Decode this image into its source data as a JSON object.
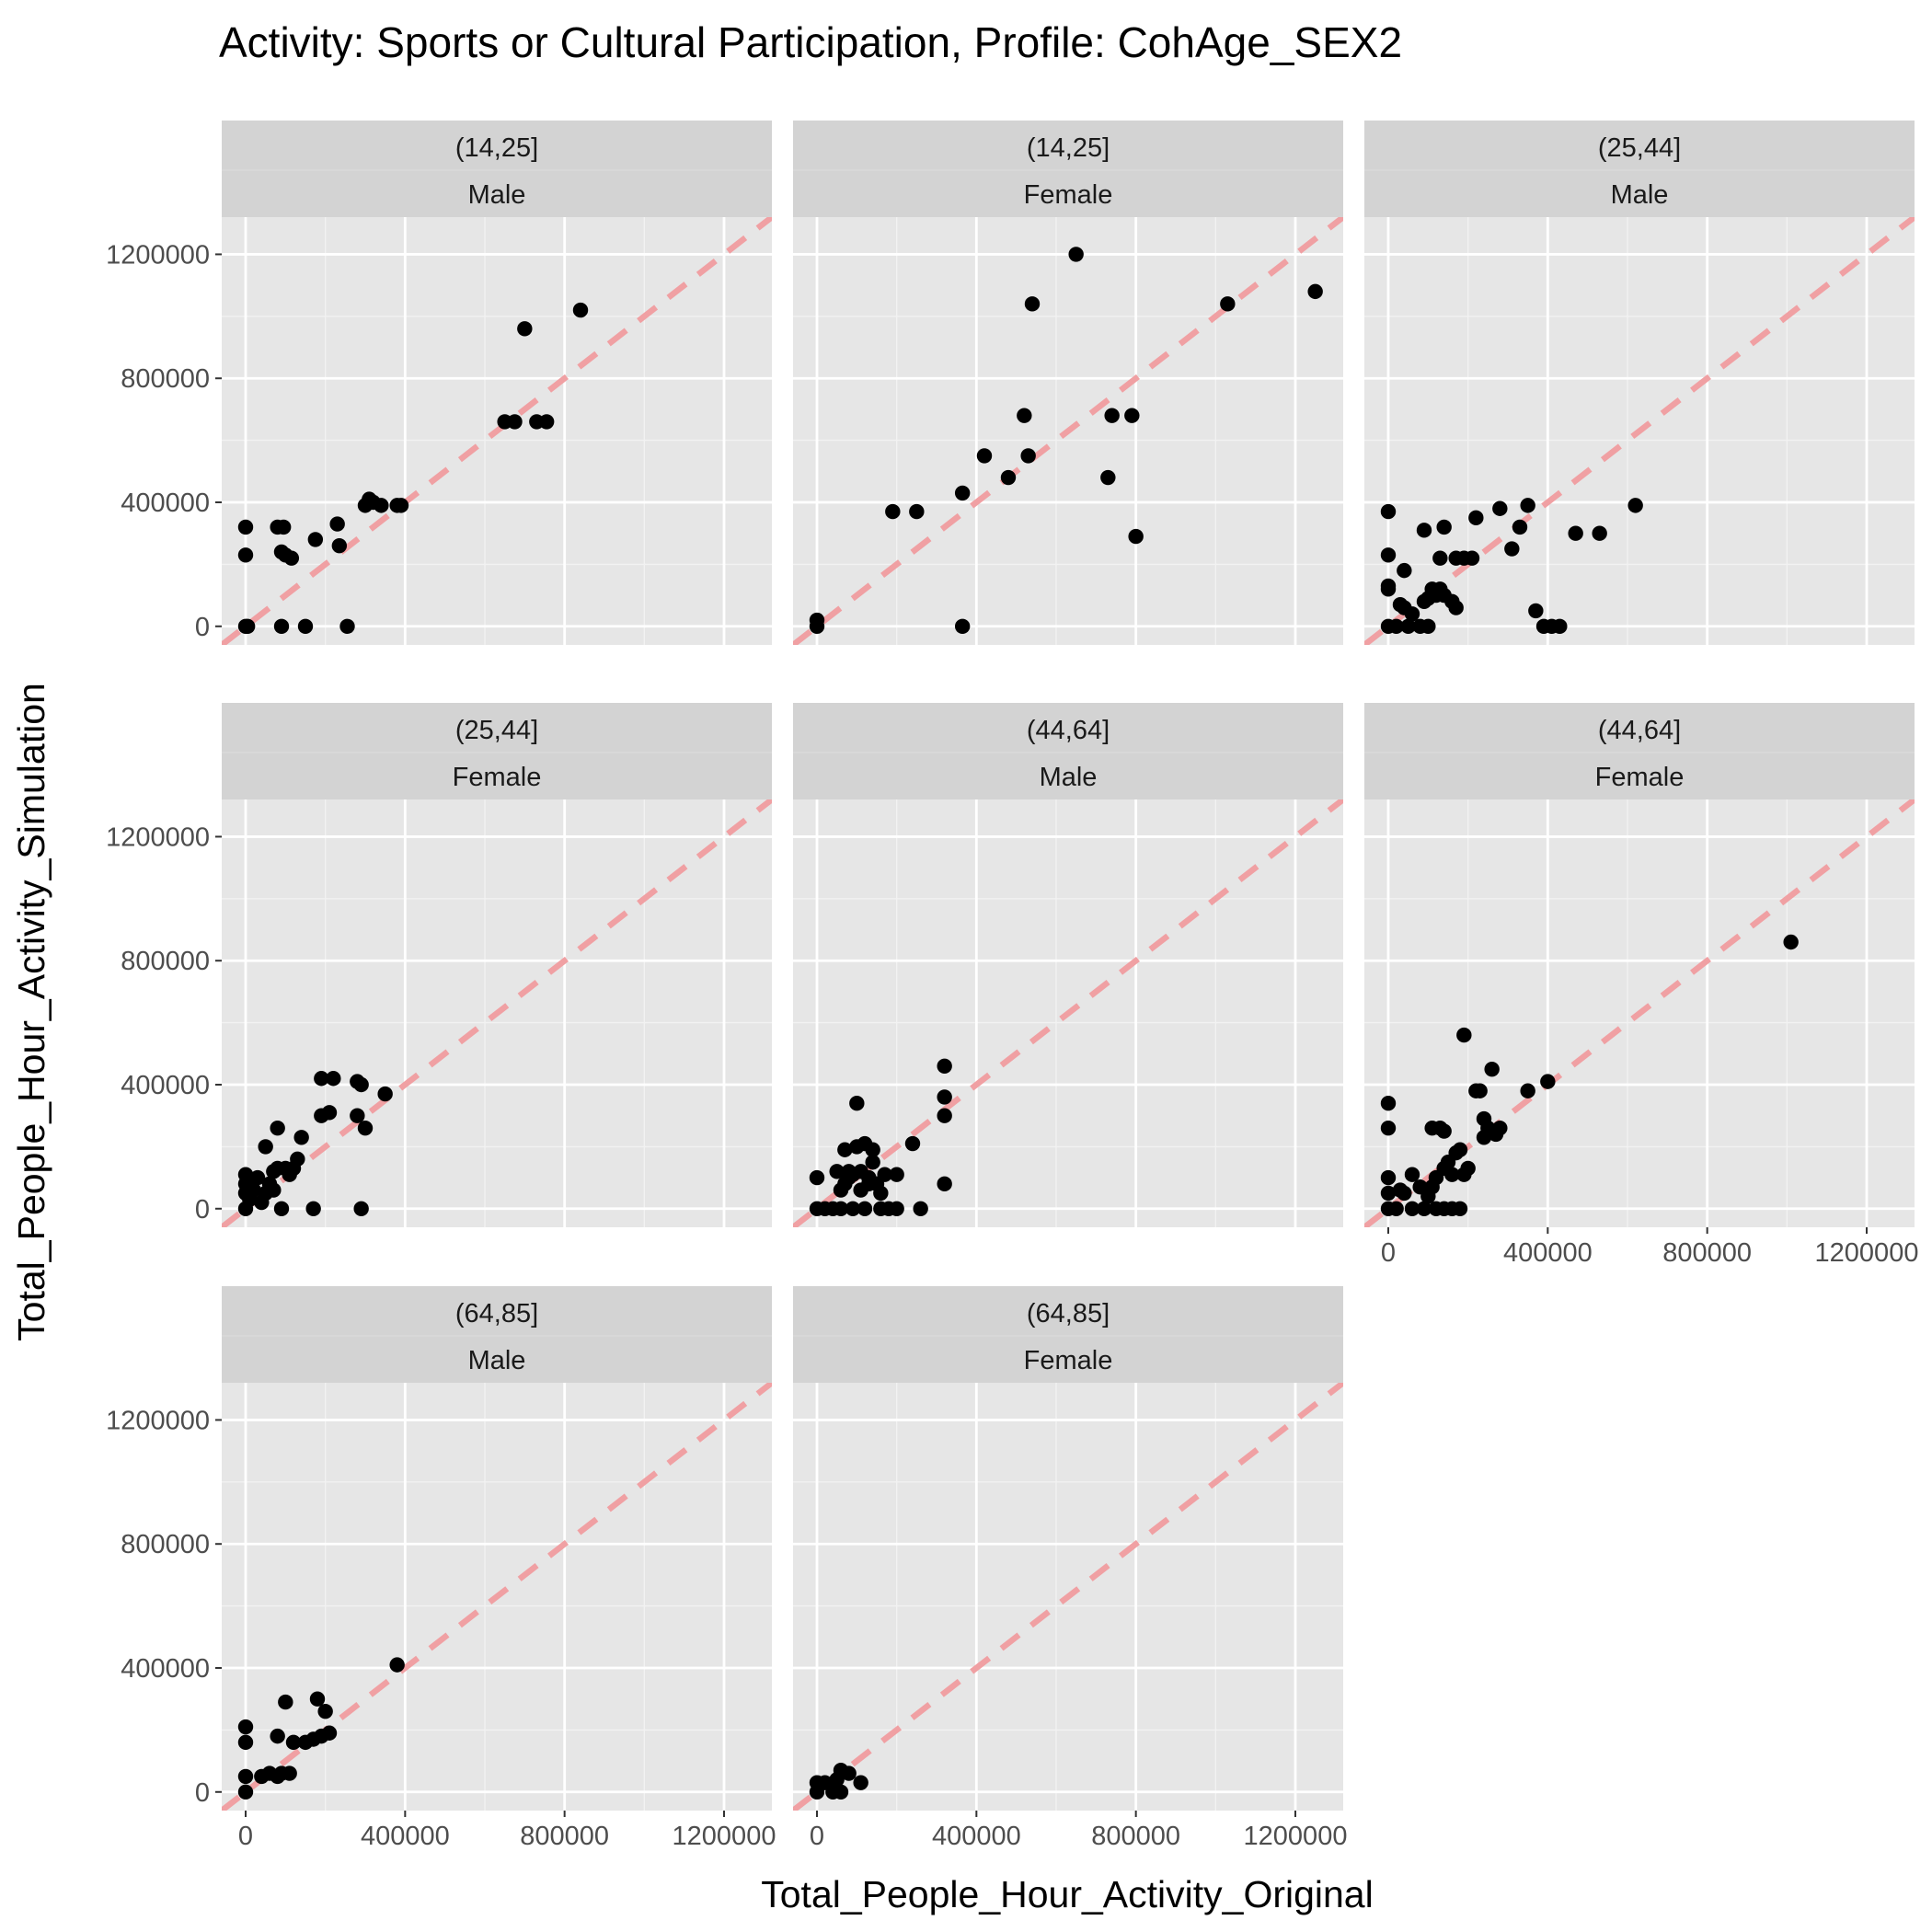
{
  "chart_data": {
    "type": "scatter",
    "title": "Activity: Sports or Cultural Participation, Profile: CohAge_SEX2",
    "xlabel": "Total_People_Hour_Activity_Original",
    "ylabel": "Total_People_Hour_Activity_Simulation",
    "xlim": [
      -60000,
      1320000
    ],
    "ylim": [
      -60000,
      1320000
    ],
    "x_ticks": [
      0,
      400000,
      800000,
      1200000
    ],
    "y_ticks": [
      0,
      400000,
      800000,
      1200000
    ],
    "x_tick_labels": [
      "0",
      "400000",
      "800000",
      "1200000"
    ],
    "y_tick_labels": [
      "0",
      "400000",
      "800000",
      "1200000"
    ],
    "reference_line": {
      "slope": 1,
      "intercept": 0,
      "style": "dashed",
      "color": "#f0a0a3"
    },
    "point_color": "#000000",
    "panel_background": "#e6e6e6",
    "strip_background": "#d3d3d3",
    "panels": [
      {
        "strip1": "(14,25]",
        "strip2": "Male",
        "points": [
          [
            0,
            320000
          ],
          [
            0,
            230000
          ],
          [
            0,
            0
          ],
          [
            5000,
            0
          ],
          [
            80000,
            320000
          ],
          [
            95000,
            320000
          ],
          [
            90000,
            240000
          ],
          [
            100000,
            230000
          ],
          [
            115000,
            220000
          ],
          [
            90000,
            0
          ],
          [
            150000,
            0
          ],
          [
            175000,
            280000
          ],
          [
            230000,
            330000
          ],
          [
            235000,
            260000
          ],
          [
            255000,
            0
          ],
          [
            300000,
            390000
          ],
          [
            310000,
            410000
          ],
          [
            320000,
            400000
          ],
          [
            340000,
            390000
          ],
          [
            380000,
            390000
          ],
          [
            390000,
            390000
          ],
          [
            650000,
            660000
          ],
          [
            675000,
            660000
          ],
          [
            730000,
            660000
          ],
          [
            755000,
            660000
          ],
          [
            700000,
            960000
          ],
          [
            840000,
            1020000
          ]
        ]
      },
      {
        "strip1": "(14,25]",
        "strip2": "Female",
        "points": [
          [
            0,
            20000
          ],
          [
            0,
            0
          ],
          [
            190000,
            370000
          ],
          [
            250000,
            370000
          ],
          [
            365000,
            430000
          ],
          [
            365000,
            0
          ],
          [
            420000,
            550000
          ],
          [
            480000,
            480000
          ],
          [
            520000,
            680000
          ],
          [
            530000,
            550000
          ],
          [
            540000,
            1040000
          ],
          [
            650000,
            1200000
          ],
          [
            730000,
            480000
          ],
          [
            740000,
            680000
          ],
          [
            790000,
            680000
          ],
          [
            800000,
            290000
          ],
          [
            1030000,
            1040000
          ],
          [
            1250000,
            1080000
          ]
        ]
      },
      {
        "strip1": "(25,44]",
        "strip2": "Male",
        "points": [
          [
            0,
            370000
          ],
          [
            0,
            230000
          ],
          [
            0,
            130000
          ],
          [
            0,
            120000
          ],
          [
            0,
            0
          ],
          [
            20000,
            0
          ],
          [
            30000,
            70000
          ],
          [
            40000,
            60000
          ],
          [
            40000,
            180000
          ],
          [
            50000,
            0
          ],
          [
            60000,
            40000
          ],
          [
            80000,
            0
          ],
          [
            90000,
            80000
          ],
          [
            90000,
            310000
          ],
          [
            100000,
            0
          ],
          [
            100000,
            90000
          ],
          [
            110000,
            120000
          ],
          [
            120000,
            100000
          ],
          [
            130000,
            120000
          ],
          [
            130000,
            220000
          ],
          [
            140000,
            100000
          ],
          [
            140000,
            320000
          ],
          [
            160000,
            80000
          ],
          [
            170000,
            60000
          ],
          [
            170000,
            220000
          ],
          [
            190000,
            220000
          ],
          [
            210000,
            220000
          ],
          [
            220000,
            350000
          ],
          [
            280000,
            380000
          ],
          [
            310000,
            250000
          ],
          [
            330000,
            320000
          ],
          [
            350000,
            390000
          ],
          [
            370000,
            50000
          ],
          [
            390000,
            0
          ],
          [
            410000,
            0
          ],
          [
            430000,
            0
          ],
          [
            470000,
            300000
          ],
          [
            530000,
            300000
          ],
          [
            620000,
            390000
          ]
        ]
      },
      {
        "strip1": "(25,44]",
        "strip2": "Female",
        "points": [
          [
            0,
            0
          ],
          [
            0,
            50000
          ],
          [
            0,
            80000
          ],
          [
            0,
            110000
          ],
          [
            10000,
            30000
          ],
          [
            20000,
            60000
          ],
          [
            30000,
            100000
          ],
          [
            40000,
            20000
          ],
          [
            50000,
            50000
          ],
          [
            50000,
            200000
          ],
          [
            60000,
            80000
          ],
          [
            70000,
            120000
          ],
          [
            70000,
            60000
          ],
          [
            80000,
            260000
          ],
          [
            80000,
            130000
          ],
          [
            90000,
            0
          ],
          [
            100000,
            130000
          ],
          [
            110000,
            110000
          ],
          [
            120000,
            130000
          ],
          [
            130000,
            160000
          ],
          [
            140000,
            230000
          ],
          [
            170000,
            0
          ],
          [
            190000,
            300000
          ],
          [
            190000,
            420000
          ],
          [
            210000,
            310000
          ],
          [
            220000,
            420000
          ],
          [
            280000,
            300000
          ],
          [
            280000,
            410000
          ],
          [
            290000,
            400000
          ],
          [
            290000,
            0
          ],
          [
            300000,
            260000
          ],
          [
            350000,
            370000
          ]
        ]
      },
      {
        "strip1": "(44,64]",
        "strip2": "Male",
        "points": [
          [
            0,
            100000
          ],
          [
            0,
            0
          ],
          [
            20000,
            0
          ],
          [
            40000,
            0
          ],
          [
            50000,
            120000
          ],
          [
            60000,
            0
          ],
          [
            60000,
            60000
          ],
          [
            70000,
            80000
          ],
          [
            70000,
            190000
          ],
          [
            80000,
            100000
          ],
          [
            80000,
            120000
          ],
          [
            90000,
            0
          ],
          [
            90000,
            110000
          ],
          [
            100000,
            340000
          ],
          [
            100000,
            200000
          ],
          [
            110000,
            60000
          ],
          [
            110000,
            120000
          ],
          [
            120000,
            0
          ],
          [
            120000,
            210000
          ],
          [
            130000,
            80000
          ],
          [
            130000,
            100000
          ],
          [
            140000,
            190000
          ],
          [
            140000,
            150000
          ],
          [
            150000,
            80000
          ],
          [
            160000,
            0
          ],
          [
            160000,
            50000
          ],
          [
            170000,
            110000
          ],
          [
            180000,
            0
          ],
          [
            200000,
            110000
          ],
          [
            200000,
            0
          ],
          [
            240000,
            210000
          ],
          [
            260000,
            0
          ],
          [
            320000,
            460000
          ],
          [
            320000,
            360000
          ],
          [
            320000,
            300000
          ],
          [
            320000,
            80000
          ]
        ]
      },
      {
        "strip1": "(44,64]",
        "strip2": "Female",
        "points": [
          [
            0,
            340000
          ],
          [
            0,
            260000
          ],
          [
            0,
            100000
          ],
          [
            0,
            50000
          ],
          [
            0,
            0
          ],
          [
            20000,
            0
          ],
          [
            30000,
            60000
          ],
          [
            40000,
            50000
          ],
          [
            60000,
            0
          ],
          [
            60000,
            110000
          ],
          [
            80000,
            70000
          ],
          [
            90000,
            0
          ],
          [
            100000,
            40000
          ],
          [
            110000,
            70000
          ],
          [
            110000,
            260000
          ],
          [
            120000,
            0
          ],
          [
            120000,
            100000
          ],
          [
            130000,
            260000
          ],
          [
            140000,
            0
          ],
          [
            140000,
            250000
          ],
          [
            140000,
            130000
          ],
          [
            150000,
            150000
          ],
          [
            160000,
            0
          ],
          [
            160000,
            110000
          ],
          [
            170000,
            180000
          ],
          [
            180000,
            0
          ],
          [
            180000,
            190000
          ],
          [
            190000,
            110000
          ],
          [
            190000,
            560000
          ],
          [
            200000,
            130000
          ],
          [
            220000,
            380000
          ],
          [
            230000,
            380000
          ],
          [
            240000,
            230000
          ],
          [
            240000,
            290000
          ],
          [
            250000,
            260000
          ],
          [
            260000,
            450000
          ],
          [
            270000,
            240000
          ],
          [
            280000,
            260000
          ],
          [
            350000,
            380000
          ],
          [
            400000,
            410000
          ],
          [
            1010000,
            860000
          ]
        ]
      },
      {
        "strip1": "(64,85]",
        "strip2": "Male",
        "points": [
          [
            0,
            210000
          ],
          [
            0,
            160000
          ],
          [
            0,
            50000
          ],
          [
            0,
            0
          ],
          [
            40000,
            50000
          ],
          [
            60000,
            60000
          ],
          [
            80000,
            50000
          ],
          [
            80000,
            180000
          ],
          [
            90000,
            60000
          ],
          [
            100000,
            290000
          ],
          [
            110000,
            60000
          ],
          [
            120000,
            160000
          ],
          [
            150000,
            160000
          ],
          [
            170000,
            170000
          ],
          [
            180000,
            300000
          ],
          [
            190000,
            180000
          ],
          [
            200000,
            260000
          ],
          [
            210000,
            190000
          ],
          [
            380000,
            410000
          ]
        ]
      },
      {
        "strip1": "(64,85]",
        "strip2": "Female",
        "points": [
          [
            0,
            30000
          ],
          [
            0,
            0
          ],
          [
            20000,
            30000
          ],
          [
            40000,
            0
          ],
          [
            50000,
            40000
          ],
          [
            60000,
            70000
          ],
          [
            60000,
            0
          ],
          [
            80000,
            60000
          ],
          [
            110000,
            30000
          ]
        ]
      }
    ]
  }
}
